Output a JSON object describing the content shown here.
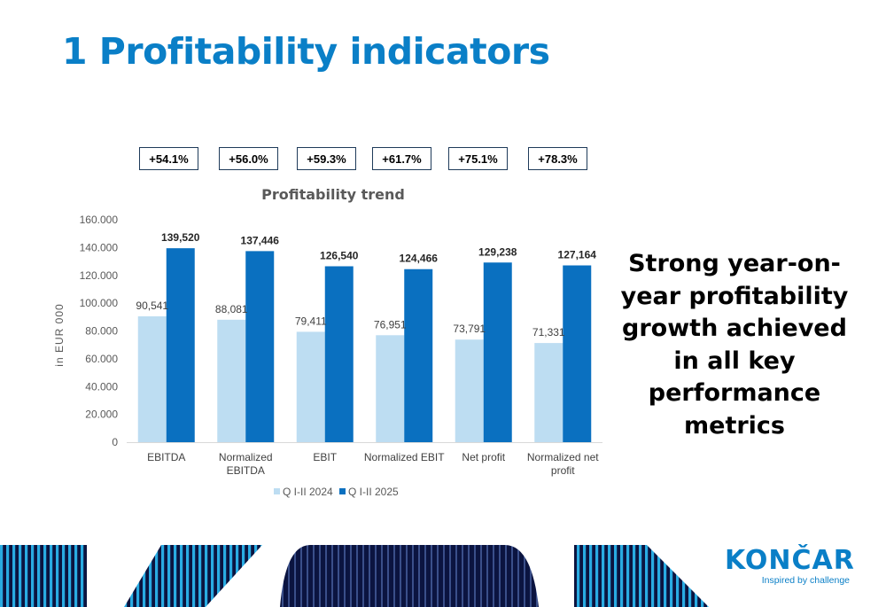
{
  "slide": {
    "title": "1 Profitability indicators",
    "takeaway": "Strong year-on-year profitability growth achieved in all key performance metrics"
  },
  "growth_badges": [
    "+54.1%",
    "+56.0%",
    "+59.3%",
    "+61.7%",
    "+75.1%",
    "+78.3%"
  ],
  "chart_data": {
    "type": "bar",
    "title": "Profitability trend",
    "ylabel": "in EUR 000",
    "xlabel": "",
    "categories": [
      "EBITDA",
      "Normalized EBITDA",
      "EBIT",
      "Normalized EBIT",
      "Net profit",
      "Normalized net profit"
    ],
    "category_label_lines": [
      [
        "EBITDA"
      ],
      [
        "Normalized",
        "EBITDA"
      ],
      [
        "EBIT"
      ],
      [
        "Normalized EBIT"
      ],
      [
        "Net profit"
      ],
      [
        "Normalized net",
        "profit"
      ]
    ],
    "series": [
      {
        "name": "Q I-II 2024",
        "values": [
          90541,
          88081,
          79411,
          76951,
          73791,
          71331
        ],
        "labels": [
          "90,541",
          "88,081",
          "79,411",
          "76,951",
          "73,791",
          "71,331"
        ],
        "color": "#bdddf2"
      },
      {
        "name": "Q I-II 2025",
        "values": [
          139520,
          137446,
          126540,
          124466,
          129238,
          127164
        ],
        "labels": [
          "139,520",
          "137,446",
          "126,540",
          "124,466",
          "129,238",
          "127,164"
        ],
        "color": "#0a70c0"
      }
    ],
    "ylim": [
      0,
      160000
    ],
    "yticks": [
      0,
      20000,
      40000,
      60000,
      80000,
      100000,
      120000,
      140000,
      160000
    ],
    "ytick_labels": [
      "0",
      "20.000",
      "40.000",
      "60.000",
      "80.000",
      "100.000",
      "120.000",
      "140.000",
      "160.000"
    ],
    "grid": false,
    "legend_position": "bottom"
  },
  "logo": {
    "name": "KONČAR",
    "tagline": "Inspired by challenge"
  },
  "colors": {
    "brand_blue": "#0a7fc7",
    "navy": "#0b1440",
    "cyan": "#29abe2"
  }
}
